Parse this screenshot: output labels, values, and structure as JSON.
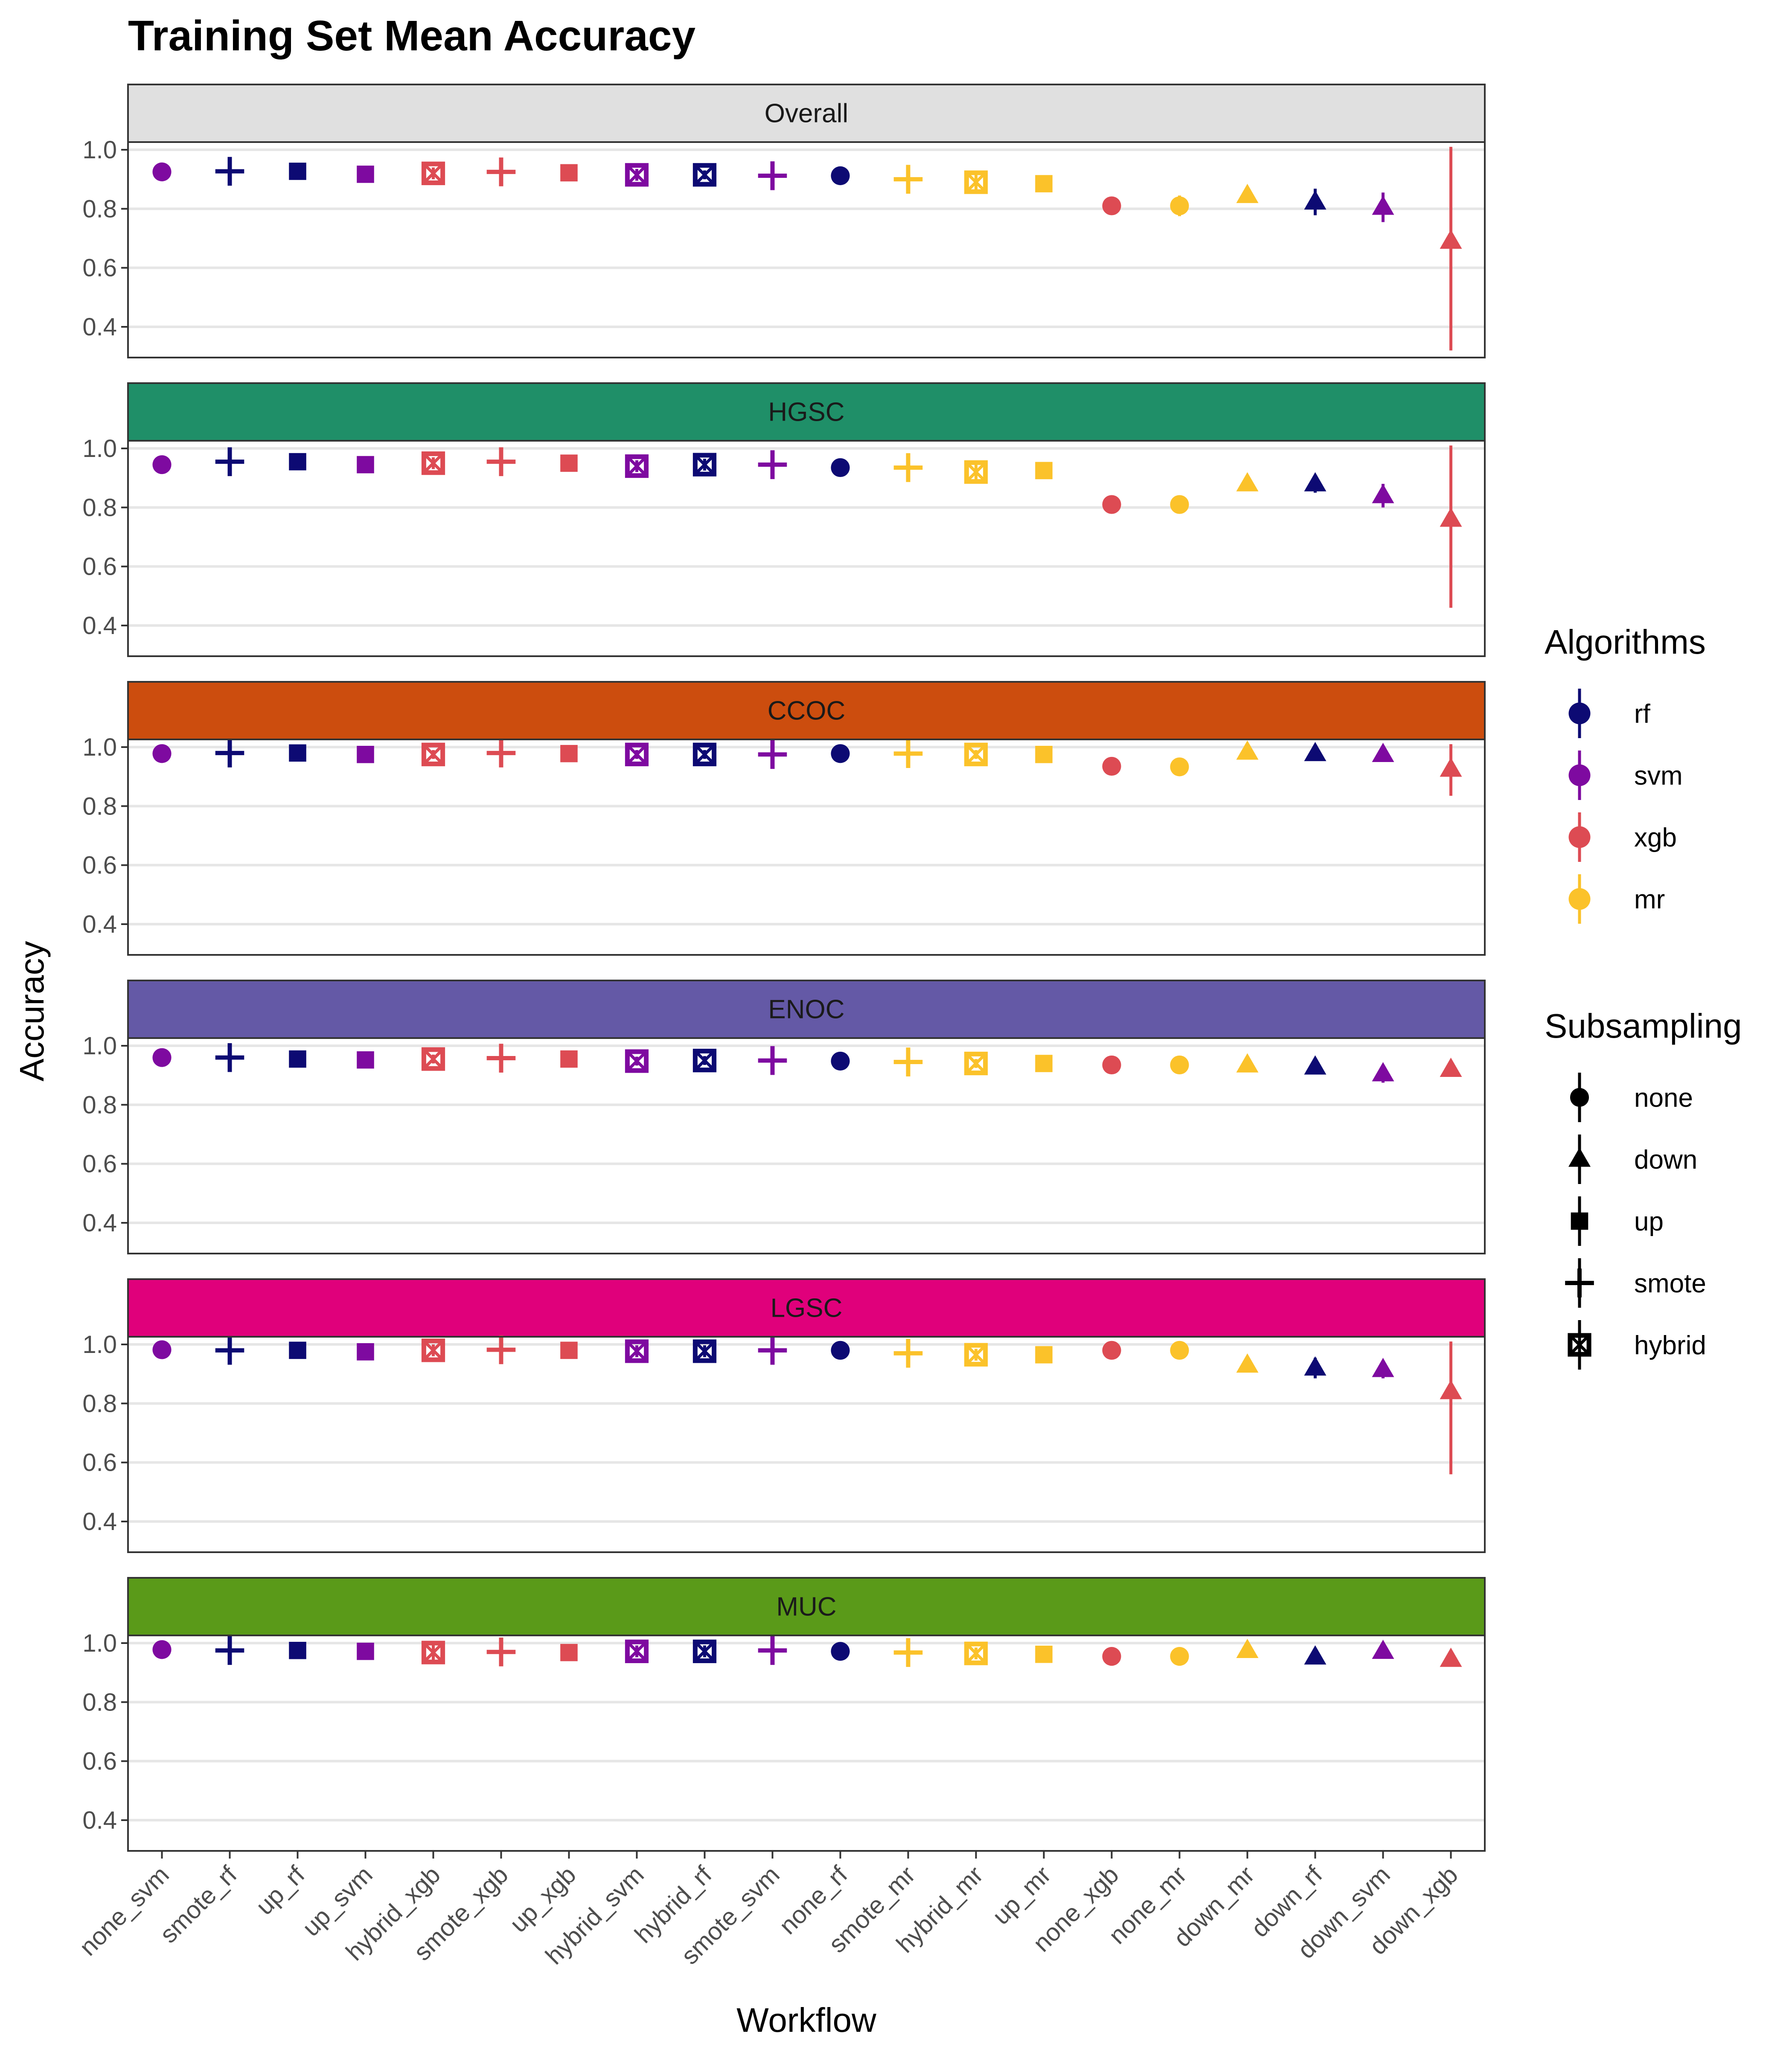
{
  "chart_data": {
    "type": "scatter",
    "title": "Training Set Mean Accuracy",
    "xlabel": "Workflow",
    "ylabel": "Accuracy",
    "ylim": [
      0.3,
      1.0
    ],
    "yticks": [
      0.4,
      0.6,
      0.8,
      1.0
    ],
    "ytick_labels": [
      "0.4",
      "0.6",
      "0.8",
      "1.0"
    ],
    "grid": true,
    "legend_position": "right",
    "categories": [
      "none_svm",
      "smote_rf",
      "up_rf",
      "up_svm",
      "hybrid_xgb",
      "smote_xgb",
      "up_xgb",
      "hybrid_svm",
      "hybrid_rf",
      "smote_svm",
      "none_rf",
      "smote_mr",
      "hybrid_mr",
      "up_mr",
      "none_xgb",
      "none_mr",
      "down_mr",
      "down_rf",
      "down_svm",
      "down_xgb"
    ],
    "legend": {
      "algorithms": {
        "title": "Algorithms",
        "items": [
          {
            "label": "rf",
            "color": "#0d0a73"
          },
          {
            "label": "svm",
            "color": "#7e0aa0"
          },
          {
            "label": "xgb",
            "color": "#dd4b53"
          },
          {
            "label": "mr",
            "color": "#fbc22a"
          }
        ]
      },
      "subsampling": {
        "title": "Subsampling",
        "items": [
          {
            "label": "none",
            "shape": "circle"
          },
          {
            "label": "down",
            "shape": "triangle"
          },
          {
            "label": "up",
            "shape": "square"
          },
          {
            "label": "smote",
            "shape": "plus"
          },
          {
            "label": "hybrid",
            "shape": "boxcross"
          }
        ]
      }
    },
    "panels": [
      {
        "name": "Overall",
        "strip_color": "#e0e0e0",
        "values": [
          0.925,
          0.927,
          0.927,
          0.917,
          0.92,
          0.925,
          0.922,
          0.915,
          0.915,
          0.912,
          0.912,
          0.9,
          0.89,
          0.885,
          0.81,
          0.81,
          0.845,
          0.823,
          0.805,
          0.69
        ],
        "errors": [
          0.025,
          0.035,
          0.01,
          0.008,
          0.02,
          0.035,
          0.008,
          0.02,
          0.015,
          0.03,
          0.008,
          0.035,
          0.025,
          0.01,
          0.025,
          0.035,
          0.02,
          0.045,
          0.05,
          0.37
        ]
      },
      {
        "name": "HGSC",
        "strip_color": "#1f8f68",
        "values": [
          0.945,
          0.955,
          0.955,
          0.945,
          0.95,
          0.955,
          0.95,
          0.94,
          0.945,
          0.945,
          0.935,
          0.935,
          0.92,
          0.925,
          0.81,
          0.81,
          0.88,
          0.88,
          0.84,
          0.76
        ],
        "errors": [
          0.015,
          0.04,
          0.01,
          0.01,
          0.02,
          0.035,
          0.01,
          0.02,
          0.02,
          0.03,
          0.01,
          0.035,
          0.025,
          0.01,
          0.025,
          0.03,
          0.02,
          0.03,
          0.04,
          0.3
        ]
      },
      {
        "name": "CCOC",
        "strip_color": "#cc4d0e",
        "values": [
          0.978,
          0.98,
          0.98,
          0.975,
          0.975,
          0.98,
          0.978,
          0.975,
          0.975,
          0.975,
          0.978,
          0.978,
          0.975,
          0.975,
          0.935,
          0.933,
          0.983,
          0.978,
          0.975,
          0.925
        ],
        "errors": [
          0.008,
          0.03,
          0.008,
          0.008,
          0.015,
          0.03,
          0.008,
          0.015,
          0.015,
          0.03,
          0.008,
          0.03,
          0.015,
          0.008,
          0.01,
          0.01,
          0.015,
          0.015,
          0.015,
          0.09
        ]
      },
      {
        "name": "ENOC",
        "strip_color": "#6459a6",
        "values": [
          0.96,
          0.96,
          0.955,
          0.952,
          0.955,
          0.958,
          0.955,
          0.948,
          0.95,
          0.95,
          0.948,
          0.945,
          0.94,
          0.94,
          0.935,
          0.935,
          0.935,
          0.928,
          0.905,
          0.92
        ],
        "errors": [
          0.01,
          0.035,
          0.01,
          0.008,
          0.015,
          0.035,
          0.008,
          0.015,
          0.015,
          0.035,
          0.01,
          0.035,
          0.015,
          0.01,
          0.01,
          0.01,
          0.02,
          0.02,
          0.03,
          0.01
        ]
      },
      {
        "name": "LGSC",
        "strip_color": "#e0007b",
        "values": [
          0.982,
          0.98,
          0.98,
          0.975,
          0.98,
          0.982,
          0.98,
          0.977,
          0.977,
          0.98,
          0.98,
          0.97,
          0.965,
          0.965,
          0.98,
          0.98,
          0.93,
          0.92,
          0.915,
          0.84
        ],
        "errors": [
          0.008,
          0.04,
          0.008,
          0.008,
          0.02,
          0.035,
          0.008,
          0.02,
          0.02,
          0.035,
          0.008,
          0.04,
          0.02,
          0.01,
          0.008,
          0.008,
          0.02,
          0.035,
          0.03,
          0.28
        ]
      },
      {
        "name": "MUC",
        "strip_color": "#5a9a19",
        "values": [
          0.978,
          0.975,
          0.975,
          0.972,
          0.968,
          0.97,
          0.968,
          0.972,
          0.972,
          0.975,
          0.972,
          0.968,
          0.965,
          0.962,
          0.955,
          0.955,
          0.975,
          0.953,
          0.972,
          0.945
        ],
        "errors": [
          0.008,
          0.035,
          0.008,
          0.008,
          0.025,
          0.035,
          0.008,
          0.02,
          0.02,
          0.03,
          0.008,
          0.04,
          0.02,
          0.01,
          0.008,
          0.008,
          0.01,
          0.01,
          0.01,
          0.01
        ]
      }
    ]
  }
}
